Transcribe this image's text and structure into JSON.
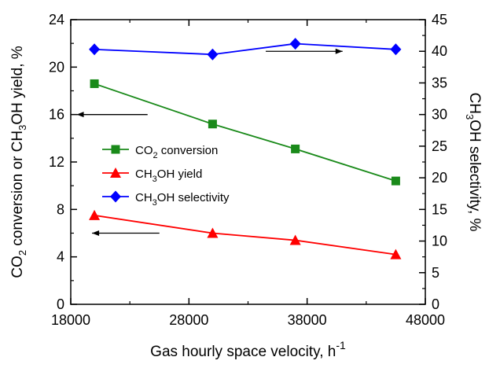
{
  "chart_data": {
    "type": "line",
    "xlabel": "Gas hourly space velocity, h",
    "xlabel_superscript": "-1",
    "ylabel_left": {
      "p1": "CO",
      "p1_sub": "2",
      "p2": " conversion or CH",
      "p2_sub": "3",
      "p3": "OH yield, %"
    },
    "ylabel_right": {
      "p1": "CH",
      "p1_sub": "3",
      "p2": "OH selectivity, %"
    },
    "xlim": [
      18000,
      48000
    ],
    "ylim_left": [
      0,
      24
    ],
    "ylim_right": [
      0,
      45
    ],
    "x_ticks": [
      18000,
      28000,
      38000,
      48000
    ],
    "y_ticks_left": [
      0,
      4,
      8,
      12,
      16,
      20,
      24
    ],
    "y_ticks_right": [
      0,
      5,
      10,
      15,
      20,
      25,
      30,
      35,
      40,
      45
    ],
    "grid": false,
    "legend_position": "center-left",
    "series": [
      {
        "name": "CO2 conversion",
        "label_main": "CO",
        "label_sub": "2",
        "label_rest": " conversion",
        "axis": "left",
        "color": "#1a8a1a",
        "marker": "square",
        "x": [
          20000,
          30000,
          37000,
          45500
        ],
        "values": [
          18.6,
          15.2,
          13.1,
          10.4
        ]
      },
      {
        "name": "CH3OH yield",
        "label_main": "CH",
        "label_sub": "3",
        "label_rest": "OH yield",
        "axis": "left",
        "color": "#ff0000",
        "marker": "triangle",
        "x": [
          20000,
          30000,
          37000,
          45500
        ],
        "values": [
          7.5,
          6.0,
          5.4,
          4.2
        ]
      },
      {
        "name": "CH3OH selectivity",
        "label_main": "CH",
        "label_sub": "3",
        "label_rest": "OH selectivity",
        "axis": "right",
        "color": "#0000ff",
        "marker": "diamond",
        "x": [
          20000,
          30000,
          37000,
          45500
        ],
        "values": [
          40.3,
          39.5,
          41.2,
          40.3
        ]
      }
    ],
    "annotations": [
      {
        "type": "arrow",
        "direction": "left",
        "target_axis": "left",
        "from": [
          24500,
          16.0
        ],
        "to": [
          18500,
          16.0
        ]
      },
      {
        "type": "arrow",
        "direction": "left",
        "target_axis": "left",
        "from": [
          25500,
          6.0
        ],
        "to": [
          19800,
          6.0
        ]
      },
      {
        "type": "arrow",
        "direction": "right",
        "target_axis": "right",
        "from": [
          34500,
          40.0
        ],
        "to": [
          41000,
          40.0
        ]
      }
    ]
  }
}
